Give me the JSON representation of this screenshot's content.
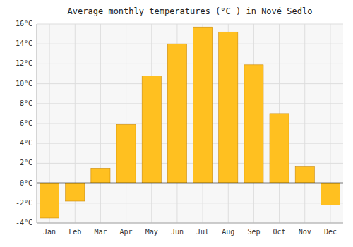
{
  "chart_data": {
    "type": "bar",
    "title": "Average monthly temperatures (°C ) in Nové Sedlo",
    "categories": [
      "Jan",
      "Feb",
      "Mar",
      "Apr",
      "May",
      "Jun",
      "Jul",
      "Aug",
      "Sep",
      "Oct",
      "Nov",
      "Dec"
    ],
    "values": [
      -3.5,
      -1.8,
      1.5,
      5.9,
      10.8,
      14.0,
      15.7,
      15.2,
      11.9,
      7.0,
      1.7,
      -2.2
    ],
    "color": "#FFC020",
    "ylim": [
      -4,
      16
    ],
    "yticks": [
      {
        "value": -4,
        "label": "-4°C"
      },
      {
        "value": -2,
        "label": "-2°C"
      },
      {
        "value": 0,
        "label": "0°C"
      },
      {
        "value": 2,
        "label": "2°C"
      },
      {
        "value": 4,
        "label": "4°C"
      },
      {
        "value": 6,
        "label": "6°C"
      },
      {
        "value": 8,
        "label": "8°C"
      },
      {
        "value": 10,
        "label": "10°C"
      },
      {
        "value": 12,
        "label": "12°C"
      },
      {
        "value": 14,
        "label": "14°C"
      },
      {
        "value": 16,
        "label": "16°C"
      }
    ],
    "grid": true
  }
}
